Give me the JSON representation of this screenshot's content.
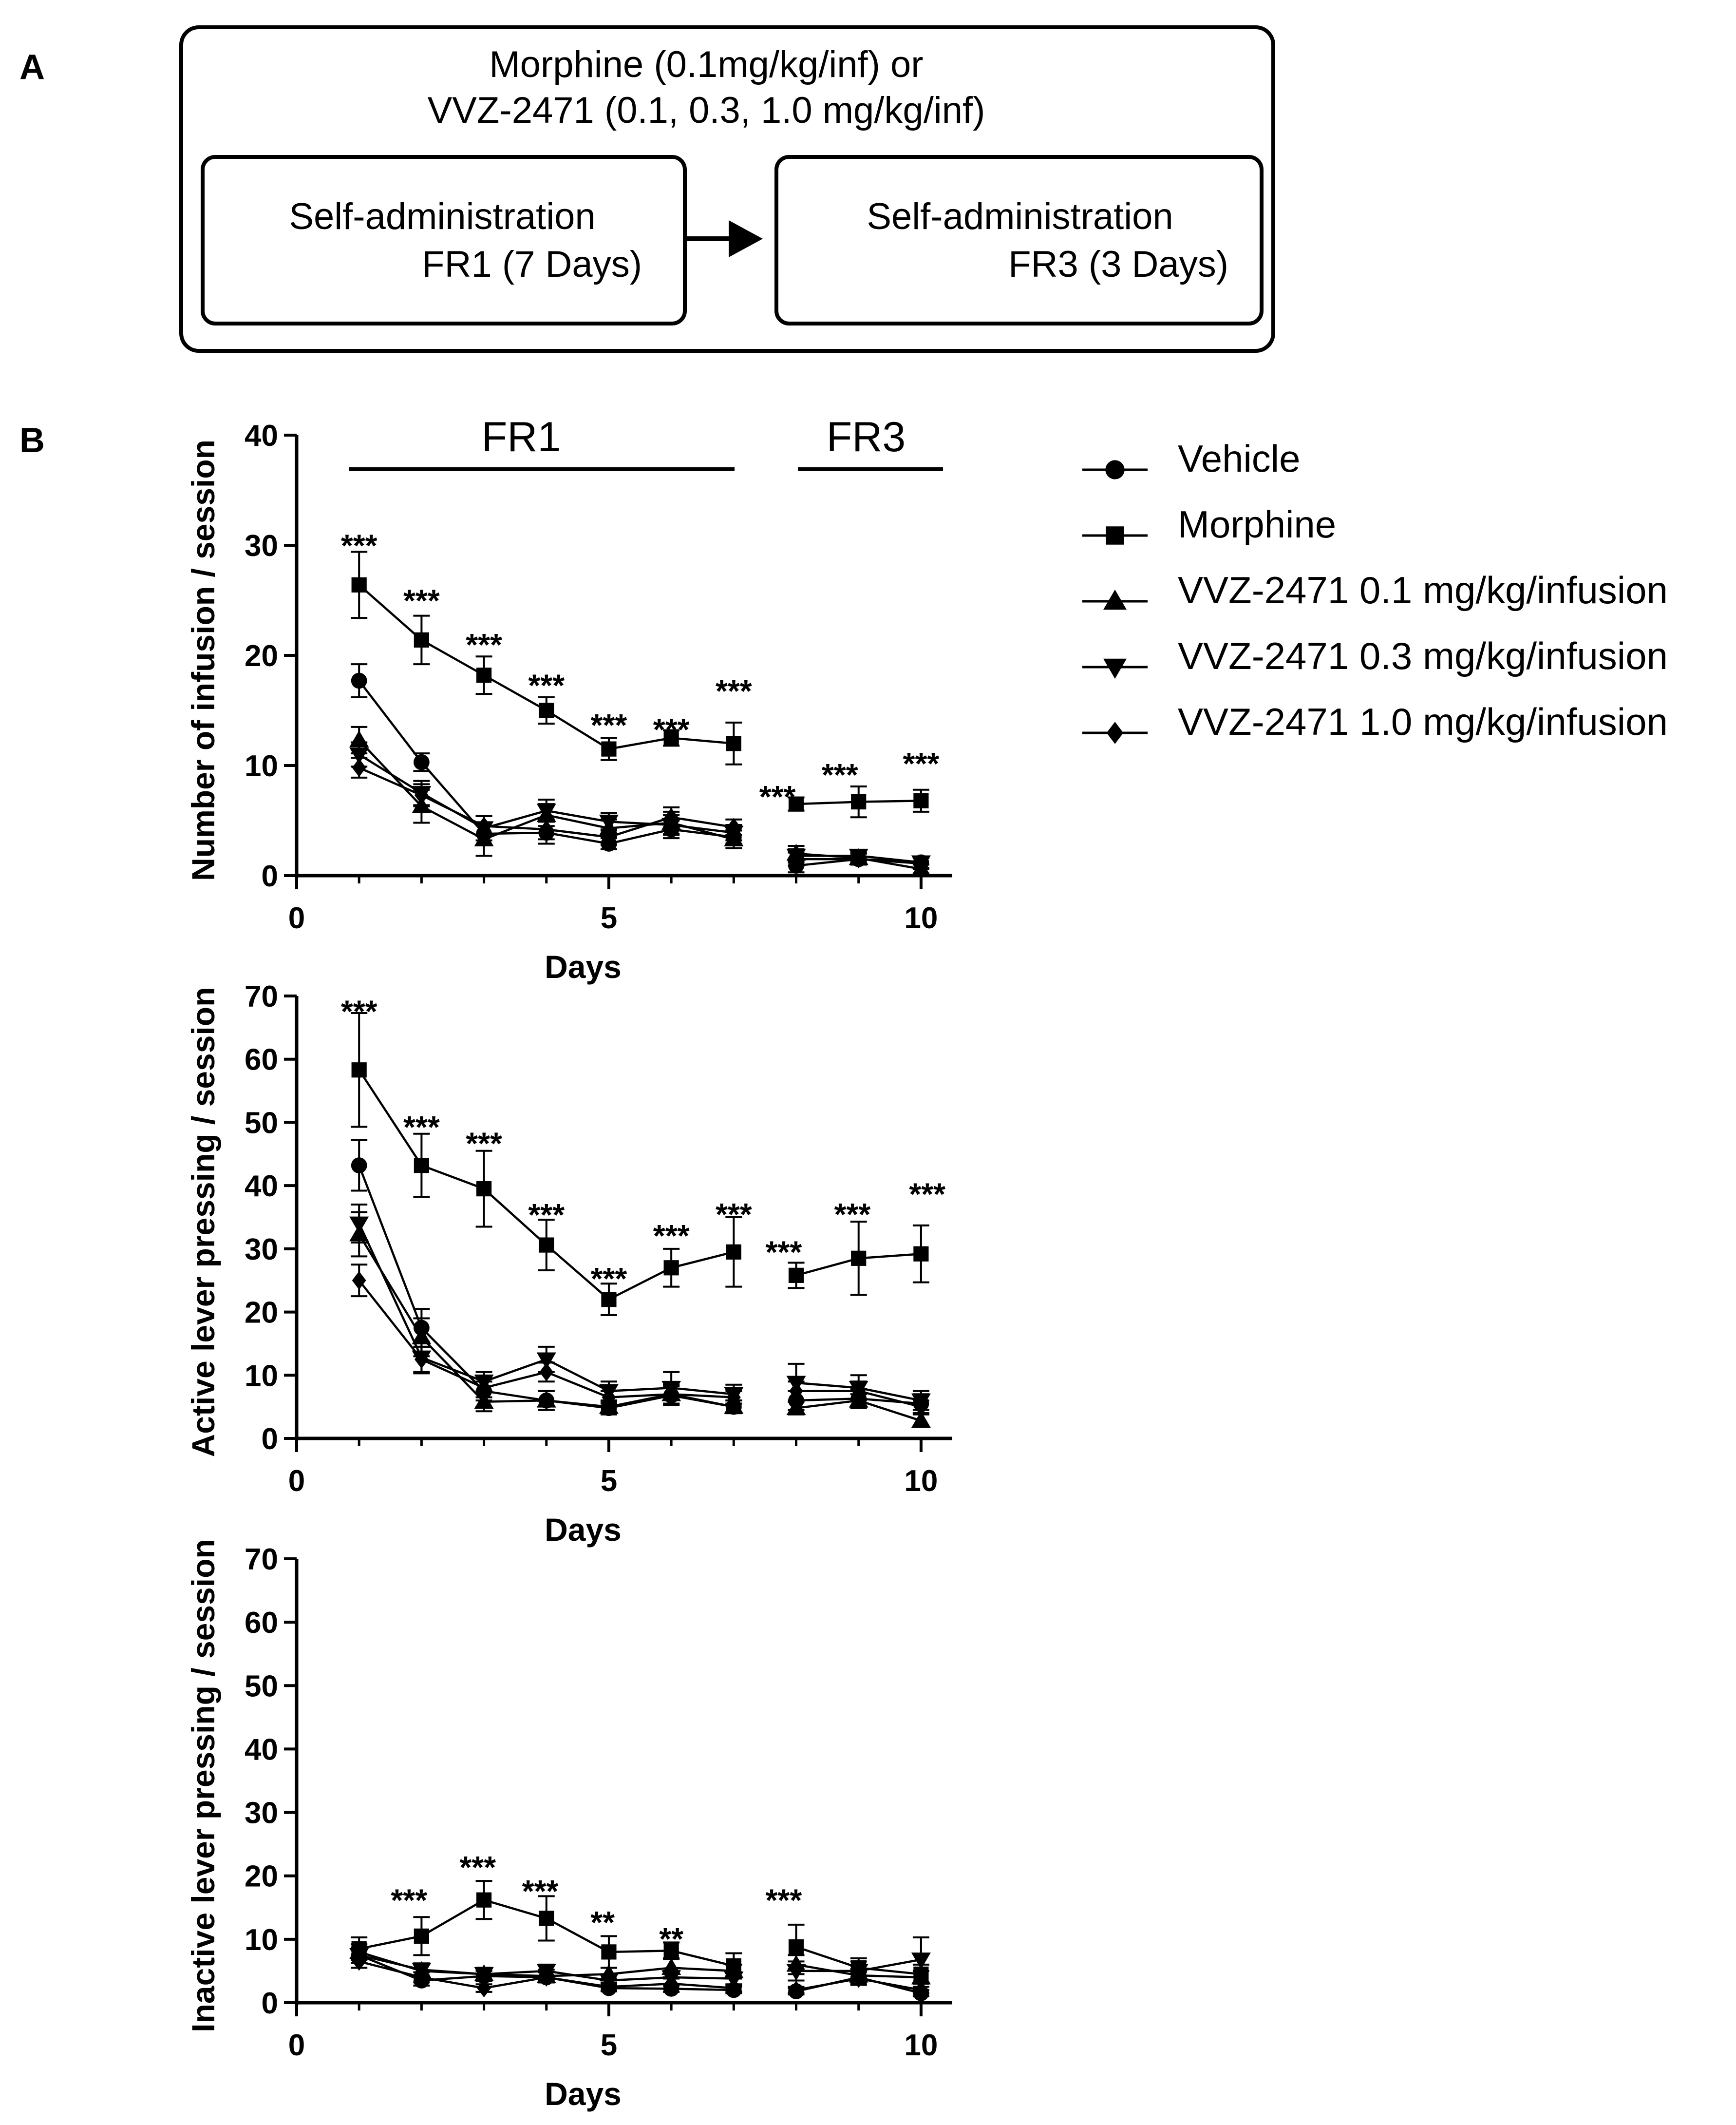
{
  "panel_a": {
    "label": "A",
    "outer_line1": "Morphine (0.1mg/kg/inf) or",
    "outer_line2": "VVZ-2471 (0.1, 0.3, 1.0 mg/kg/inf)",
    "box1_line1": "Self-administration",
    "box1_line2": "FR1 (7 Days)",
    "box2_line1": "Self-administration",
    "box2_line2": "FR3  (3 Days)"
  },
  "panel_b": {
    "label": "B",
    "phase_fr1": "FR1",
    "phase_fr3": "FR3"
  },
  "legend": [
    {
      "name": "Vehicle",
      "marker": "circle"
    },
    {
      "name": "Morphine",
      "marker": "square"
    },
    {
      "name": "VVZ-2471 0.1 mg/kg/infusion",
      "marker": "triangle-up"
    },
    {
      "name": "VVZ-2471 0.3 mg/kg/infusion",
      "marker": "triangle-down"
    },
    {
      "name": "VVZ-2471 1.0 mg/kg/infusion",
      "marker": "diamond"
    }
  ],
  "chart_data": [
    {
      "type": "line",
      "id": "infusion",
      "title": "",
      "xlabel": "Days",
      "ylabel": "Number of infusion / session",
      "xlim": [
        0,
        10.5
      ],
      "ylim": [
        0,
        40
      ],
      "xticks": [
        0,
        5,
        10
      ],
      "yticks": [
        0,
        10,
        20,
        30,
        40
      ],
      "segments": [
        [
          1,
          7
        ],
        [
          8,
          10
        ]
      ],
      "series": [
        {
          "name": "Vehicle",
          "marker": "circle",
          "x": [
            1,
            2,
            3,
            4,
            5,
            6,
            7,
            8,
            9,
            10
          ],
          "y": [
            17.7,
            10.3,
            3.8,
            3.9,
            2.9,
            4.2,
            3.5,
            0.9,
            1.5,
            1.2
          ],
          "err": [
            1.5,
            0.8,
            1.0,
            1.0,
            0.5,
            0.8,
            0.6,
            0.6,
            0.5,
            0.5
          ]
        },
        {
          "name": "Morphine",
          "marker": "square",
          "x": [
            1,
            2,
            3,
            4,
            5,
            6,
            7,
            8,
            9,
            10
          ],
          "y": [
            26.4,
            21.4,
            18.2,
            15.0,
            11.5,
            12.5,
            12.0,
            6.5,
            6.7,
            6.8
          ],
          "err": [
            3.0,
            2.2,
            1.7,
            1.2,
            1.0,
            0.7,
            1.9,
            0.6,
            1.4,
            1.0
          ]
        },
        {
          "name": "VVZ-2471 0.1 mg/kg/infusion",
          "marker": "triangle-up",
          "x": [
            1,
            2,
            3,
            4,
            5,
            6,
            7,
            8,
            9,
            10
          ],
          "y": [
            12.3,
            6.3,
            3.3,
            5.5,
            4.3,
            4.8,
            3.3,
            2.0,
            1.6,
            0.6
          ],
          "err": [
            1.2,
            1.5,
            1.5,
            1.0,
            0.8,
            1.0,
            0.8,
            0.7,
            0.5,
            0.4
          ]
        },
        {
          "name": "VVZ-2471 0.3 mg/kg/infusion",
          "marker": "triangle-down",
          "x": [
            1,
            2,
            3,
            4,
            5,
            6,
            7,
            8,
            9,
            10
          ],
          "y": [
            11.0,
            7.5,
            4.3,
            5.9,
            4.9,
            4.6,
            3.9,
            1.8,
            1.8,
            1.2
          ],
          "err": [
            1.1,
            1.1,
            1.1,
            1.0,
            0.8,
            0.9,
            0.7,
            0.6,
            0.5,
            0.5
          ]
        },
        {
          "name": "VVZ-2471 1.0 mg/kg/infusion",
          "marker": "diamond",
          "x": [
            1,
            2,
            3,
            4,
            5,
            6,
            7,
            8,
            9,
            10
          ],
          "y": [
            9.8,
            7.3,
            4.5,
            4.2,
            3.5,
            5.3,
            4.4,
            1.5,
            1.5,
            1.1
          ],
          "err": [
            0.9,
            1.0,
            0.9,
            0.9,
            0.7,
            0.9,
            0.7,
            0.6,
            0.5,
            0.5
          ]
        }
      ],
      "annotations": [
        {
          "x": 1,
          "y": 30.5,
          "text": "***"
        },
        {
          "x": 2,
          "y": 25.5,
          "text": "***"
        },
        {
          "x": 3,
          "y": 21.5,
          "text": "***"
        },
        {
          "x": 4,
          "y": 17.8,
          "text": "***"
        },
        {
          "x": 5,
          "y": 14.2,
          "text": "***"
        },
        {
          "x": 6,
          "y": 13.8,
          "text": "***"
        },
        {
          "x": 7,
          "y": 17.3,
          "text": "***"
        },
        {
          "x": 7.7,
          "y": 7.7,
          "text": "***"
        },
        {
          "x": 8.7,
          "y": 9.7,
          "text": "***"
        },
        {
          "x": 10,
          "y": 10.7,
          "text": "***"
        }
      ]
    },
    {
      "type": "line",
      "id": "active",
      "title": "",
      "xlabel": "Days",
      "ylabel": "Active lever pressing / session",
      "xlim": [
        0,
        10.5
      ],
      "ylim": [
        0,
        70
      ],
      "xticks": [
        0,
        5,
        10
      ],
      "yticks": [
        0,
        10,
        20,
        30,
        40,
        50,
        60,
        70
      ],
      "segments": [
        [
          1,
          7
        ],
        [
          8,
          10
        ]
      ],
      "series": [
        {
          "name": "Vehicle",
          "marker": "circle",
          "x": [
            1,
            2,
            3,
            4,
            5,
            6,
            7,
            8,
            9,
            10
          ],
          "y": [
            43.2,
            17.5,
            7.5,
            6.0,
            4.8,
            6.8,
            5.0,
            6.0,
            6.3,
            5.5
          ],
          "err": [
            4.0,
            3.0,
            1.5,
            1.5,
            1.0,
            1.5,
            1.0,
            1.5,
            1.5,
            1.5
          ]
        },
        {
          "name": "Morphine",
          "marker": "square",
          "x": [
            1,
            2,
            3,
            4,
            5,
            6,
            7,
            8,
            9,
            10
          ],
          "y": [
            58.3,
            43.2,
            39.5,
            30.6,
            22.0,
            27.0,
            29.5,
            25.8,
            28.5,
            29.2
          ],
          "err": [
            9.0,
            5.0,
            6.0,
            4.0,
            2.5,
            3.0,
            5.5,
            2.0,
            5.8,
            4.5
          ]
        },
        {
          "name": "VVZ-2471 0.1 mg/kg/infusion",
          "marker": "triangle-up",
          "x": [
            1,
            2,
            3,
            4,
            5,
            6,
            7,
            8,
            9,
            10
          ],
          "y": [
            32.3,
            16.0,
            5.8,
            6.0,
            5.0,
            7.0,
            5.0,
            4.8,
            6.0,
            2.8
          ],
          "err": [
            3.5,
            3.0,
            1.5,
            1.5,
            1.0,
            1.5,
            1.0,
            1.0,
            1.0,
            1.0
          ]
        },
        {
          "name": "VVZ-2471 0.3 mg/kg/infusion",
          "marker": "triangle-down",
          "x": [
            1,
            2,
            3,
            4,
            5,
            6,
            7,
            8,
            9,
            10
          ],
          "y": [
            34.0,
            12.8,
            9.0,
            12.5,
            7.5,
            8.0,
            7.0,
            8.8,
            8.0,
            6.0
          ],
          "err": [
            3.0,
            2.5,
            1.5,
            2.0,
            1.5,
            2.5,
            1.5,
            3.0,
            2.0,
            1.5
          ]
        },
        {
          "name": "VVZ-2471 1.0 mg/kg/infusion",
          "marker": "diamond",
          "x": [
            1,
            2,
            3,
            4,
            5,
            6,
            7,
            8,
            9,
            10
          ],
          "y": [
            25.0,
            12.5,
            8.0,
            10.5,
            6.5,
            7.0,
            6.5,
            7.5,
            7.5,
            5.0
          ],
          "err": [
            2.5,
            2.0,
            1.5,
            1.5,
            1.0,
            1.5,
            1.0,
            1.5,
            1.5,
            1.0
          ]
        }
      ],
      "annotations": [
        {
          "x": 1,
          "y": 68.5,
          "text": "***"
        },
        {
          "x": 2,
          "y": 50.2,
          "text": "***"
        },
        {
          "x": 3,
          "y": 47.6,
          "text": "***"
        },
        {
          "x": 4,
          "y": 36.3,
          "text": "***"
        },
        {
          "x": 5,
          "y": 26.2,
          "text": "***"
        },
        {
          "x": 6,
          "y": 33.0,
          "text": "***"
        },
        {
          "x": 7,
          "y": 36.4,
          "text": "***"
        },
        {
          "x": 7.8,
          "y": 30.4,
          "text": "***"
        },
        {
          "x": 8.9,
          "y": 36.4,
          "text": "***"
        },
        {
          "x": 10.1,
          "y": 39.6,
          "text": "***"
        }
      ]
    },
    {
      "type": "line",
      "id": "inactive",
      "title": "",
      "xlabel": "Days",
      "ylabel": "Inactive lever pressing / session",
      "xlim": [
        0,
        10.5
      ],
      "ylim": [
        0,
        70
      ],
      "xticks": [
        0,
        5,
        10
      ],
      "yticks": [
        0,
        10,
        20,
        30,
        40,
        50,
        60,
        70
      ],
      "segments": [
        [
          1,
          7
        ],
        [
          8,
          10
        ]
      ],
      "series": [
        {
          "name": "Vehicle",
          "marker": "circle",
          "x": [
            1,
            2,
            3,
            4,
            5,
            6,
            7,
            8,
            9,
            10
          ],
          "y": [
            7.5,
            3.5,
            4.2,
            4.0,
            2.3,
            2.2,
            2.0,
            1.8,
            4.0,
            1.5
          ],
          "err": [
            1.2,
            0.8,
            0.8,
            0.8,
            0.5,
            0.5,
            0.5,
            0.5,
            1.0,
            0.5
          ]
        },
        {
          "name": "Morphine",
          "marker": "square",
          "x": [
            1,
            2,
            3,
            4,
            5,
            6,
            7,
            8,
            9,
            10
          ],
          "y": [
            8.5,
            10.5,
            16.2,
            13.3,
            8.0,
            8.2,
            5.8,
            8.8,
            5.5,
            4.5
          ],
          "err": [
            1.8,
            3.0,
            3.0,
            3.5,
            2.5,
            1.3,
            2.0,
            3.5,
            1.5,
            1.5
          ]
        },
        {
          "name": "VVZ-2471 0.1 mg/kg/infusion",
          "marker": "triangle-up",
          "x": [
            1,
            2,
            3,
            4,
            5,
            6,
            7,
            8,
            9,
            10
          ],
          "y": [
            8.0,
            5.0,
            4.5,
            4.2,
            4.5,
            5.5,
            5.0,
            6.0,
            4.3,
            4.0
          ],
          "err": [
            1.2,
            1.0,
            1.0,
            1.0,
            1.0,
            1.5,
            1.0,
            1.5,
            1.0,
            1.0
          ]
        },
        {
          "name": "VVZ-2471 0.3 mg/kg/infusion",
          "marker": "triangle-down",
          "x": [
            1,
            2,
            3,
            4,
            5,
            6,
            7,
            8,
            9,
            10
          ],
          "y": [
            7.5,
            5.2,
            4.5,
            5.0,
            3.5,
            4.0,
            3.8,
            5.0,
            5.0,
            6.8
          ],
          "err": [
            1.2,
            1.0,
            1.0,
            1.0,
            1.0,
            1.0,
            1.0,
            1.5,
            1.5,
            3.5
          ]
        },
        {
          "name": "VVZ-2471 1.0 mg/kg/infusion",
          "marker": "diamond",
          "x": [
            1,
            2,
            3,
            4,
            5,
            6,
            7,
            8,
            9,
            10
          ],
          "y": [
            6.5,
            4.0,
            2.3,
            4.0,
            2.5,
            3.0,
            2.3,
            2.0,
            3.8,
            2.0
          ],
          "err": [
            1.0,
            0.8,
            0.6,
            0.8,
            0.6,
            0.8,
            0.6,
            0.5,
            1.0,
            0.5
          ]
        }
      ],
      "annotations": [
        {
          "x": 1.8,
          "y": 17.1,
          "text": "***"
        },
        {
          "x": 2.9,
          "y": 22.3,
          "text": "***"
        },
        {
          "x": 3.9,
          "y": 18.5,
          "text": "***"
        },
        {
          "x": 4.9,
          "y": 13.6,
          "text": "**"
        },
        {
          "x": 6.0,
          "y": 11.0,
          "text": "**"
        },
        {
          "x": 7.8,
          "y": 17.1,
          "text": "***"
        }
      ]
    }
  ]
}
